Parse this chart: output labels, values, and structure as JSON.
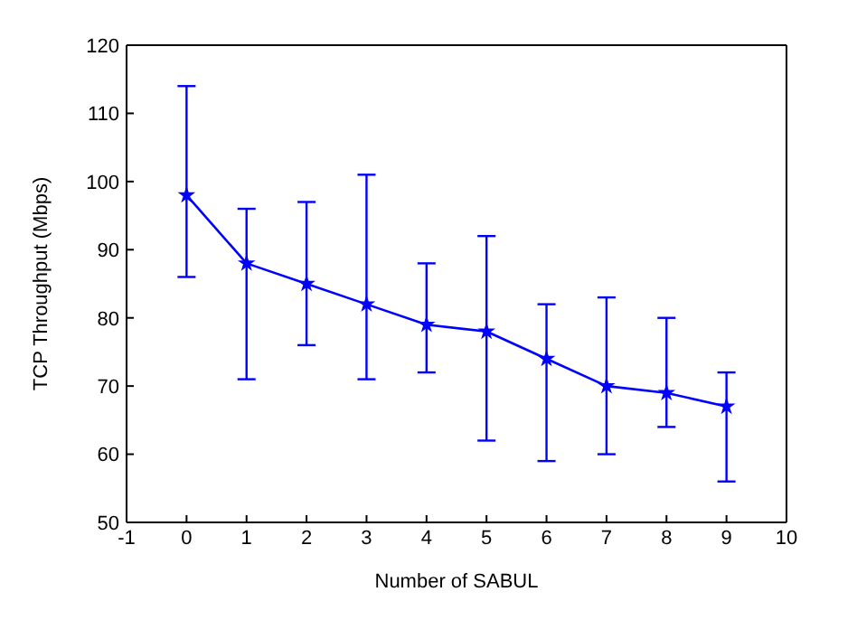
{
  "chart_data": {
    "type": "line",
    "xlabel": "Number of SABUL",
    "ylabel": "TCP Throughput (Mbps)",
    "x": [
      0,
      1,
      2,
      3,
      4,
      5,
      6,
      7,
      8,
      9
    ],
    "series": [
      {
        "color": "#0000ff",
        "values": [
          98,
          88,
          85,
          82,
          79,
          78,
          74,
          70,
          69,
          67
        ],
        "errors": [
          [
            86,
            114
          ],
          [
            71,
            96
          ],
          [
            76,
            97
          ],
          [
            71,
            101
          ],
          [
            72,
            88
          ],
          [
            62,
            92
          ],
          [
            59,
            82
          ],
          [
            60,
            83
          ],
          [
            64,
            80
          ],
          [
            56,
            72
          ]
        ]
      }
    ],
    "xlim": [
      -1,
      10
    ],
    "xticks": [
      -1,
      0,
      1,
      2,
      3,
      4,
      5,
      6,
      7,
      8,
      9,
      10
    ],
    "ylim": [
      50,
      120
    ],
    "yticks": [
      50,
      60,
      70,
      80,
      90,
      100,
      110,
      120
    ],
    "grid": false,
    "legend": false,
    "marker": "star",
    "line_style": "solid"
  }
}
